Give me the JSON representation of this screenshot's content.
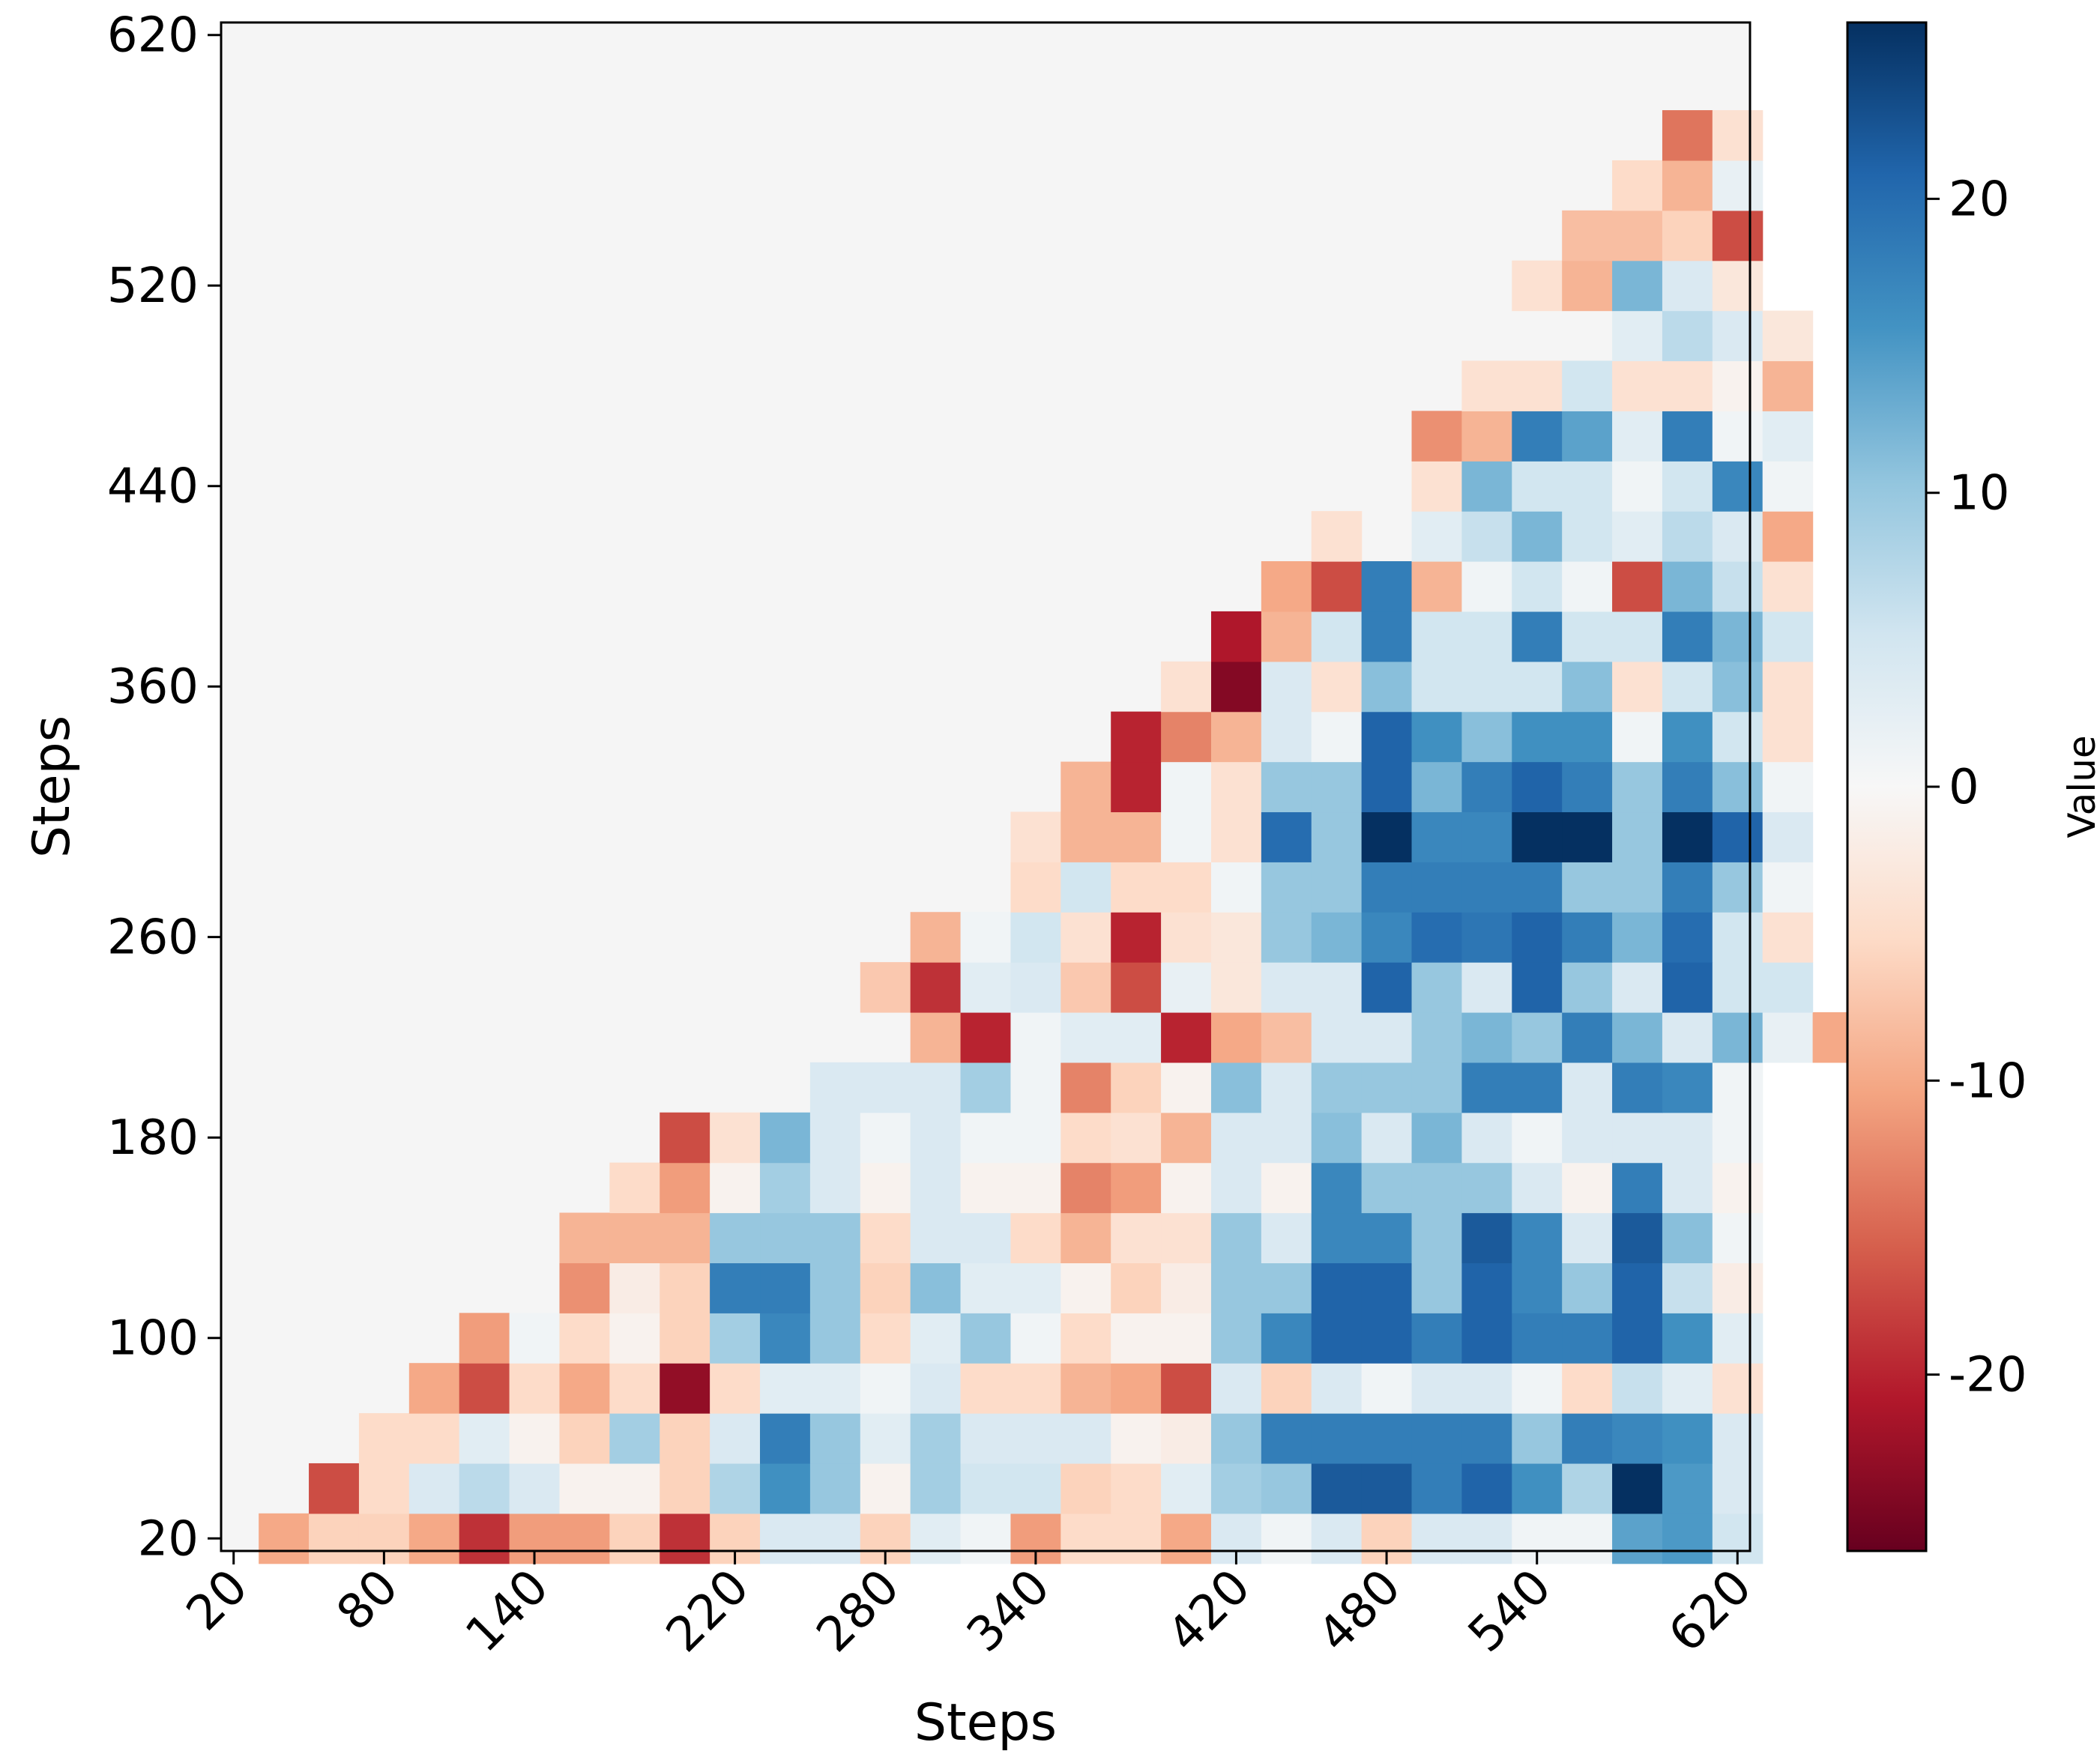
{
  "chart_data": {
    "type": "heatmap",
    "title": "",
    "xlabel": "Steps",
    "ylabel": "Steps",
    "colorbar_label": "Value",
    "colormap": "RdBu",
    "vmin": -26,
    "vmax": 26,
    "x_range": [
      15,
      625
    ],
    "y_range": [
      15,
      625
    ],
    "step_size": 20,
    "x_start": 20,
    "y_start": 20,
    "x_ticks": [
      20,
      80,
      140,
      220,
      280,
      340,
      420,
      480,
      540,
      620
    ],
    "y_ticks": [
      20,
      100,
      180,
      260,
      360,
      440,
      520,
      620
    ],
    "colorbar_ticks": [
      20,
      10,
      0,
      -10,
      -20
    ],
    "colorbar_tick_labels": [
      "20",
      "10",
      "0",
      "-10",
      "-20"
    ],
    "masked_color": "#f5f5f5",
    "cell_rows": [
      [
        null,
        -10,
        -6,
        -6,
        -10,
        -19,
        -11,
        -11,
        -6,
        -19,
        -6,
        4,
        4,
        -6,
        3,
        1,
        -11,
        -5,
        -5,
        -10,
        4,
        1,
        4,
        -6,
        4,
        4,
        1,
        1,
        14,
        15,
        5
      ],
      [
        null,
        null,
        -17,
        -5,
        4,
        7,
        4,
        -1,
        -1,
        -6,
        8,
        16,
        10,
        -1,
        9,
        5,
        5,
        -6,
        -5,
        3,
        9,
        10,
        22,
        22,
        18,
        21,
        16,
        8,
        26,
        15,
        4
      ],
      [
        null,
        null,
        null,
        -5,
        -5,
        3,
        -1,
        -6,
        9,
        -6,
        4,
        18,
        10,
        3,
        9,
        4,
        4,
        4,
        -1,
        -2,
        10,
        18,
        18,
        18,
        18,
        18,
        10,
        18,
        17,
        16,
        4
      ],
      [
        null,
        null,
        null,
        null,
        -10,
        -17,
        -5,
        -10,
        -5,
        -23,
        -5,
        3,
        3,
        1,
        4,
        -5,
        -5,
        -9,
        -10,
        -17,
        4,
        -6,
        4,
        1,
        4,
        4,
        1,
        -5,
        6,
        3,
        -4
      ],
      [
        null,
        null,
        null,
        null,
        null,
        -11,
        1,
        -5,
        -1,
        -6,
        9,
        17,
        10,
        -5,
        3,
        10,
        1,
        -5,
        -1,
        -1,
        10,
        17,
        21,
        21,
        18,
        21,
        18,
        18,
        21,
        16,
        3
      ],
      [
        null,
        null,
        null,
        null,
        null,
        null,
        null,
        -12,
        -2,
        -6,
        18,
        18,
        10,
        -6,
        11,
        3,
        3,
        -1,
        -6,
        -2,
        10,
        10,
        21,
        21,
        10,
        21,
        17,
        10,
        21,
        6,
        -2
      ],
      [
        null,
        null,
        null,
        null,
        null,
        null,
        null,
        -9,
        -9,
        -9,
        10,
        10,
        10,
        -5,
        4,
        4,
        -5,
        -9,
        -4,
        -4,
        10,
        4,
        17,
        17,
        10,
        22,
        17,
        4,
        22,
        11,
        1
      ],
      [
        null,
        null,
        null,
        null,
        null,
        null,
        null,
        null,
        -5,
        -11,
        -1,
        9,
        4,
        -1,
        4,
        -1,
        -1,
        -13,
        -11,
        -1,
        4,
        -1,
        17,
        10,
        10,
        10,
        4,
        -1,
        18,
        4,
        -1
      ],
      [
        null,
        null,
        null,
        null,
        null,
        null,
        null,
        null,
        null,
        -17,
        -4,
        12,
        4,
        1,
        4,
        1,
        1,
        -5,
        -4,
        -9,
        4,
        4,
        11,
        4,
        12,
        4,
        1,
        4,
        4,
        4,
        1
      ],
      [
        null,
        null,
        null,
        null,
        null,
        null,
        null,
        null,
        null,
        null,
        null,
        null,
        4,
        4,
        4,
        9,
        1,
        -13,
        -6,
        -1,
        11,
        4,
        10,
        10,
        10,
        18,
        18,
        4,
        18,
        17,
        1
      ],
      [
        null,
        null,
        null,
        null,
        null,
        null,
        null,
        null,
        null,
        null,
        null,
        null,
        null,
        null,
        -9,
        -20,
        1,
        3,
        3,
        -20,
        -10,
        -8,
        4,
        4,
        10,
        12,
        10,
        18,
        12,
        4,
        12,
        2,
        -10
      ],
      [
        null,
        null,
        null,
        null,
        null,
        null,
        null,
        null,
        null,
        null,
        null,
        null,
        null,
        -7,
        -19,
        3,
        4,
        -7,
        -17,
        2,
        -3,
        4,
        4,
        21,
        10,
        4,
        21,
        10,
        4,
        21,
        5,
        5
      ],
      [
        null,
        null,
        null,
        null,
        null,
        null,
        null,
        null,
        null,
        null,
        null,
        null,
        null,
        null,
        -9,
        1,
        5,
        -4,
        -20,
        -4,
        -3,
        10,
        12,
        17,
        20,
        19,
        21,
        18,
        12,
        20,
        5,
        -4
      ],
      [
        null,
        null,
        null,
        null,
        null,
        null,
        null,
        null,
        null,
        null,
        null,
        null,
        null,
        null,
        null,
        null,
        -5,
        5,
        -5,
        -5,
        1,
        10,
        10,
        18,
        18,
        18,
        18,
        10,
        10,
        18,
        10,
        1
      ],
      [
        null,
        null,
        null,
        null,
        null,
        null,
        null,
        null,
        null,
        null,
        null,
        null,
        null,
        null,
        null,
        null,
        -4,
        -9,
        -9,
        1,
        -4,
        20,
        10,
        26,
        17,
        17,
        26,
        26,
        10,
        26,
        21,
        4
      ],
      [
        null,
        null,
        null,
        null,
        null,
        null,
        null,
        null,
        null,
        null,
        null,
        null,
        null,
        null,
        null,
        null,
        null,
        -9,
        -20,
        1,
        -4,
        10,
        10,
        21,
        12,
        18,
        21,
        18,
        10,
        18,
        11,
        1
      ],
      [
        null,
        null,
        null,
        null,
        null,
        null,
        null,
        null,
        null,
        null,
        null,
        null,
        null,
        null,
        null,
        null,
        null,
        null,
        -20,
        -13,
        -9,
        4,
        1,
        21,
        16,
        11,
        16,
        16,
        1,
        16,
        5,
        -4
      ],
      [
        null,
        null,
        null,
        null,
        null,
        null,
        null,
        null,
        null,
        null,
        null,
        null,
        null,
        null,
        null,
        null,
        null,
        null,
        null,
        -4,
        -24,
        4,
        -4,
        11,
        5,
        5,
        5,
        11,
        -4,
        5,
        11,
        -4
      ],
      [
        null,
        null,
        null,
        null,
        null,
        null,
        null,
        null,
        null,
        null,
        null,
        null,
        null,
        null,
        null,
        null,
        null,
        null,
        null,
        null,
        -21,
        -9,
        5,
        18,
        5,
        5,
        18,
        5,
        5,
        18,
        12,
        5
      ],
      [
        null,
        null,
        null,
        null,
        null,
        null,
        null,
        null,
        null,
        null,
        null,
        null,
        null,
        null,
        null,
        null,
        null,
        null,
        null,
        null,
        null,
        -10,
        -17,
        18,
        -9,
        1,
        5,
        1,
        -17,
        12,
        6,
        -4
      ],
      [
        null,
        null,
        null,
        null,
        null,
        null,
        null,
        null,
        null,
        null,
        null,
        null,
        null,
        null,
        null,
        null,
        null,
        null,
        null,
        null,
        null,
        null,
        -4,
        null,
        3,
        6,
        12,
        5,
        3,
        7,
        4,
        -10
      ],
      [
        null,
        null,
        null,
        null,
        null,
        null,
        null,
        null,
        null,
        null,
        null,
        null,
        null,
        null,
        null,
        null,
        null,
        null,
        null,
        null,
        null,
        null,
        null,
        null,
        -4,
        12,
        5,
        5,
        1,
        5,
        17,
        1
      ],
      [
        null,
        null,
        null,
        null,
        null,
        null,
        null,
        null,
        null,
        null,
        null,
        null,
        null,
        null,
        null,
        null,
        null,
        null,
        null,
        null,
        null,
        null,
        null,
        null,
        -12,
        -9,
        18,
        14,
        3,
        18,
        1,
        3
      ],
      [
        null,
        null,
        null,
        null,
        null,
        null,
        null,
        null,
        null,
        null,
        null,
        null,
        null,
        null,
        null,
        null,
        null,
        null,
        null,
        null,
        null,
        null,
        null,
        null,
        null,
        -4,
        -4,
        5,
        -4,
        -4,
        -1,
        -9
      ],
      [
        null,
        null,
        null,
        null,
        null,
        null,
        null,
        null,
        null,
        null,
        null,
        null,
        null,
        null,
        null,
        null,
        null,
        null,
        null,
        null,
        null,
        null,
        null,
        null,
        null,
        null,
        null,
        null,
        3,
        7,
        4,
        -3
      ],
      [
        null,
        null,
        null,
        null,
        null,
        null,
        null,
        null,
        null,
        null,
        null,
        null,
        null,
        null,
        null,
        null,
        null,
        null,
        null,
        null,
        null,
        null,
        null,
        null,
        null,
        null,
        -4,
        -9,
        12,
        4,
        -3
      ],
      [
        null,
        null,
        null,
        null,
        null,
        null,
        null,
        null,
        null,
        null,
        null,
        null,
        null,
        null,
        null,
        null,
        null,
        null,
        null,
        null,
        null,
        null,
        null,
        null,
        null,
        null,
        null,
        -8,
        -8,
        -6,
        -17
      ],
      [
        null,
        null,
        null,
        null,
        null,
        null,
        null,
        null,
        null,
        null,
        null,
        null,
        null,
        null,
        null,
        null,
        null,
        null,
        null,
        null,
        null,
        null,
        null,
        null,
        null,
        null,
        null,
        null,
        -5,
        -9,
        2
      ],
      [
        null,
        null,
        null,
        null,
        null,
        null,
        null,
        null,
        null,
        null,
        null,
        null,
        null,
        null,
        null,
        null,
        null,
        null,
        null,
        null,
        null,
        null,
        null,
        null,
        null,
        null,
        null,
        null,
        null,
        -14,
        -4
      ]
    ]
  }
}
